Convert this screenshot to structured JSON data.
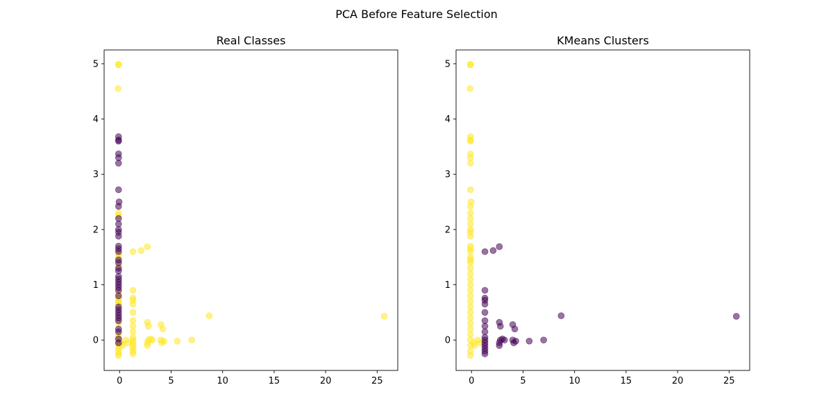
{
  "figure": {
    "suptitle": "PCA Before Feature Selection"
  },
  "colors": {
    "class_0": "#440154",
    "class_1": "#fde725",
    "axes": "#000000",
    "background": "#ffffff"
  },
  "chart_data": [
    {
      "type": "scatter",
      "title": "Real Classes",
      "xlabel": "",
      "ylabel": "",
      "xlim": [
        -1.5,
        27
      ],
      "ylim": [
        -0.55,
        5.25
      ],
      "xticks": [
        0,
        5,
        10,
        15,
        20,
        25
      ],
      "yticks": [
        0,
        1,
        2,
        3,
        4,
        5
      ],
      "grid": false,
      "legend": "none",
      "point_alpha": 0.55,
      "series": [
        {
          "color_key": "class_1",
          "points": [
            [
              -0.1,
              4.99
            ],
            [
              -0.1,
              4.98
            ],
            [
              -0.15,
              4.55
            ],
            [
              -0.1,
              2.3
            ],
            [
              -0.1,
              2.25
            ],
            [
              -0.1,
              1.55
            ],
            [
              -0.1,
              1.5
            ],
            [
              -0.1,
              1.35
            ],
            [
              -0.1,
              0.85
            ],
            [
              -0.1,
              0.75
            ],
            [
              -0.1,
              0.7
            ],
            [
              -0.1,
              0.68
            ],
            [
              -0.1,
              0.66
            ],
            [
              -0.1,
              0.3
            ],
            [
              -0.1,
              0.1
            ],
            [
              -0.1,
              0.05
            ],
            [
              -0.1,
              -0.05
            ],
            [
              -0.1,
              -0.1
            ],
            [
              -0.1,
              -0.15
            ],
            [
              -0.1,
              -0.2
            ],
            [
              -0.1,
              -0.25
            ],
            [
              -0.1,
              -0.28
            ],
            [
              0.2,
              -0.05
            ],
            [
              0.3,
              -0.1
            ],
            [
              0.6,
              0.0
            ],
            [
              0.8,
              -0.05
            ],
            [
              1.3,
              0.9
            ],
            [
              1.3,
              0.76
            ],
            [
              1.3,
              0.72
            ],
            [
              1.3,
              0.65
            ],
            [
              1.3,
              0.5
            ],
            [
              1.3,
              0.35
            ],
            [
              1.3,
              0.25
            ],
            [
              1.3,
              0.15
            ],
            [
              1.3,
              0.05
            ],
            [
              1.3,
              0.0
            ],
            [
              1.3,
              -0.05
            ],
            [
              1.3,
              -0.1
            ],
            [
              1.3,
              -0.15
            ],
            [
              1.3,
              -0.2
            ],
            [
              1.3,
              -0.25
            ],
            [
              1.3,
              1.6
            ],
            [
              2.1,
              1.62
            ],
            [
              2.7,
              1.69
            ],
            [
              2.7,
              0.32
            ],
            [
              2.8,
              0.25
            ],
            [
              2.8,
              0.0
            ],
            [
              2.7,
              -0.05
            ],
            [
              2.7,
              -0.1
            ],
            [
              3.0,
              0.02
            ],
            [
              3.2,
              0.0
            ],
            [
              4.0,
              0.28
            ],
            [
              4.2,
              0.2
            ],
            [
              4.0,
              0.0
            ],
            [
              4.1,
              -0.05
            ],
            [
              4.3,
              -0.02
            ],
            [
              5.6,
              -0.02
            ],
            [
              7.0,
              0.0
            ],
            [
              8.7,
              0.44
            ],
            [
              25.7,
              0.43
            ]
          ]
        },
        {
          "color_key": "class_0",
          "points": [
            [
              -0.1,
              3.68
            ],
            [
              -0.1,
              3.62
            ],
            [
              -0.1,
              3.6
            ],
            [
              -0.1,
              3.37
            ],
            [
              -0.1,
              3.3
            ],
            [
              -0.1,
              3.2
            ],
            [
              -0.1,
              2.72
            ],
            [
              -0.05,
              2.5
            ],
            [
              -0.1,
              2.42
            ],
            [
              -0.1,
              2.2
            ],
            [
              -0.1,
              2.1
            ],
            [
              -0.1,
              2.0
            ],
            [
              -0.1,
              1.95
            ],
            [
              -0.1,
              1.88
            ],
            [
              -0.1,
              1.7
            ],
            [
              -0.1,
              1.65
            ],
            [
              -0.1,
              1.6
            ],
            [
              -0.1,
              1.45
            ],
            [
              -0.1,
              1.4
            ],
            [
              -0.1,
              1.3
            ],
            [
              -0.1,
              1.25
            ],
            [
              -0.1,
              1.15
            ],
            [
              -0.1,
              1.1
            ],
            [
              -0.1,
              1.05
            ],
            [
              -0.1,
              1.0
            ],
            [
              -0.1,
              0.95
            ],
            [
              -0.1,
              0.9
            ],
            [
              -0.1,
              0.8
            ],
            [
              -0.1,
              0.6
            ],
            [
              -0.1,
              0.55
            ],
            [
              -0.1,
              0.5
            ],
            [
              -0.1,
              0.45
            ],
            [
              -0.1,
              0.4
            ],
            [
              -0.1,
              0.35
            ],
            [
              -0.1,
              0.2
            ],
            [
              -0.1,
              0.15
            ],
            [
              -0.1,
              0.02
            ],
            [
              -0.1,
              -0.05
            ]
          ]
        }
      ]
    },
    {
      "type": "scatter",
      "title": "KMeans Clusters",
      "xlabel": "",
      "ylabel": "",
      "xlim": [
        -1.5,
        27
      ],
      "ylim": [
        -0.55,
        5.25
      ],
      "xticks": [
        0,
        5,
        10,
        15,
        20,
        25
      ],
      "yticks": [
        0,
        1,
        2,
        3,
        4,
        5
      ],
      "grid": false,
      "legend": "none",
      "point_alpha": 0.55,
      "series": [
        {
          "color_key": "class_1",
          "points": [
            [
              -0.1,
              4.99
            ],
            [
              -0.1,
              4.98
            ],
            [
              -0.15,
              4.55
            ],
            [
              -0.1,
              3.68
            ],
            [
              -0.1,
              3.62
            ],
            [
              -0.1,
              3.6
            ],
            [
              -0.1,
              3.37
            ],
            [
              -0.1,
              3.3
            ],
            [
              -0.1,
              3.2
            ],
            [
              -0.1,
              2.72
            ],
            [
              -0.05,
              2.5
            ],
            [
              -0.1,
              2.42
            ],
            [
              -0.1,
              2.3
            ],
            [
              -0.1,
              2.2
            ],
            [
              -0.1,
              2.1
            ],
            [
              -0.1,
              2.0
            ],
            [
              -0.1,
              1.95
            ],
            [
              -0.1,
              1.88
            ],
            [
              -0.1,
              1.7
            ],
            [
              -0.1,
              1.65
            ],
            [
              -0.1,
              1.6
            ],
            [
              -0.1,
              1.5
            ],
            [
              -0.1,
              1.45
            ],
            [
              -0.1,
              1.4
            ],
            [
              -0.1,
              1.3
            ],
            [
              -0.1,
              1.2
            ],
            [
              -0.1,
              1.1
            ],
            [
              -0.1,
              1.0
            ],
            [
              -0.1,
              0.9
            ],
            [
              -0.1,
              0.8
            ],
            [
              -0.1,
              0.7
            ],
            [
              -0.1,
              0.6
            ],
            [
              -0.1,
              0.5
            ],
            [
              -0.1,
              0.4
            ],
            [
              -0.1,
              0.3
            ],
            [
              -0.1,
              0.2
            ],
            [
              -0.1,
              0.1
            ],
            [
              -0.1,
              0.0
            ],
            [
              -0.1,
              -0.1
            ],
            [
              -0.1,
              -0.2
            ],
            [
              -0.1,
              -0.28
            ],
            [
              0.2,
              -0.05
            ],
            [
              0.3,
              -0.1
            ],
            [
              0.6,
              0.0
            ],
            [
              0.8,
              -0.05
            ]
          ]
        },
        {
          "color_key": "class_0",
          "points": [
            [
              1.3,
              1.6
            ],
            [
              2.1,
              1.62
            ],
            [
              2.7,
              1.69
            ],
            [
              1.3,
              0.9
            ],
            [
              1.3,
              0.76
            ],
            [
              1.3,
              0.72
            ],
            [
              1.3,
              0.65
            ],
            [
              1.3,
              0.5
            ],
            [
              1.3,
              0.35
            ],
            [
              1.3,
              0.25
            ],
            [
              1.3,
              0.15
            ],
            [
              1.3,
              0.05
            ],
            [
              1.3,
              0.0
            ],
            [
              1.3,
              -0.05
            ],
            [
              1.3,
              -0.1
            ],
            [
              1.3,
              -0.15
            ],
            [
              1.3,
              -0.2
            ],
            [
              1.3,
              -0.25
            ],
            [
              2.7,
              0.32
            ],
            [
              2.8,
              0.25
            ],
            [
              2.8,
              0.0
            ],
            [
              2.7,
              -0.05
            ],
            [
              2.7,
              -0.1
            ],
            [
              3.0,
              0.02
            ],
            [
              3.2,
              0.0
            ],
            [
              4.0,
              0.28
            ],
            [
              4.2,
              0.2
            ],
            [
              4.0,
              0.0
            ],
            [
              4.1,
              -0.05
            ],
            [
              4.3,
              -0.02
            ],
            [
              5.6,
              -0.02
            ],
            [
              7.0,
              0.0
            ],
            [
              8.7,
              0.44
            ],
            [
              25.7,
              0.43
            ]
          ]
        }
      ]
    }
  ]
}
